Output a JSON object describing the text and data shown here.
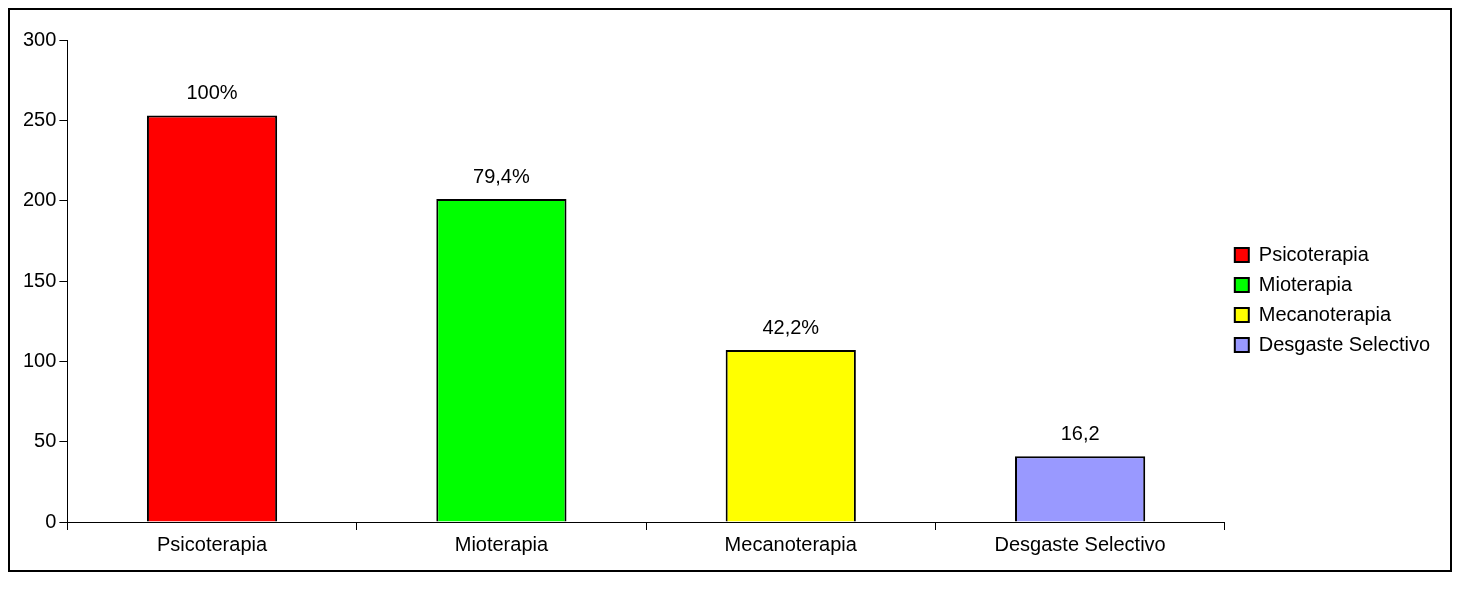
{
  "chart_data": {
    "type": "bar",
    "categories": [
      "Psicoterapia",
      "Mioterapia",
      "Mecanoterapia",
      "Desgaste Selectivo"
    ],
    "series": [
      {
        "name": "Psicoterapia",
        "color": "#ff0000",
        "values": [
          253,
          null,
          null,
          null
        ]
      },
      {
        "name": "Mioterapia",
        "color": "#00ff00",
        "values": [
          null,
          201,
          null,
          null
        ]
      },
      {
        "name": "Mecanoterapia",
        "color": "#ffff00",
        "values": [
          null,
          null,
          107,
          null
        ]
      },
      {
        "name": "Desgaste Selectivo",
        "color": "#9999ff",
        "values": [
          null,
          null,
          null,
          41
        ]
      }
    ],
    "annotations": [
      {
        "text": "100%",
        "x": "Psicoterapia",
        "y": 253
      },
      {
        "text": "79,4%",
        "x": "Mioterapia",
        "y": 201
      },
      {
        "text": "42,2%",
        "x": "Mecanoterapia",
        "y": 107
      },
      {
        "text": "16,2",
        "x": "Desgaste Selectivo",
        "y": 41
      }
    ],
    "ylim": [
      0,
      300
    ],
    "yticks": [
      0,
      50,
      100,
      150,
      200,
      250,
      300
    ],
    "grid": false,
    "legend": "right"
  }
}
